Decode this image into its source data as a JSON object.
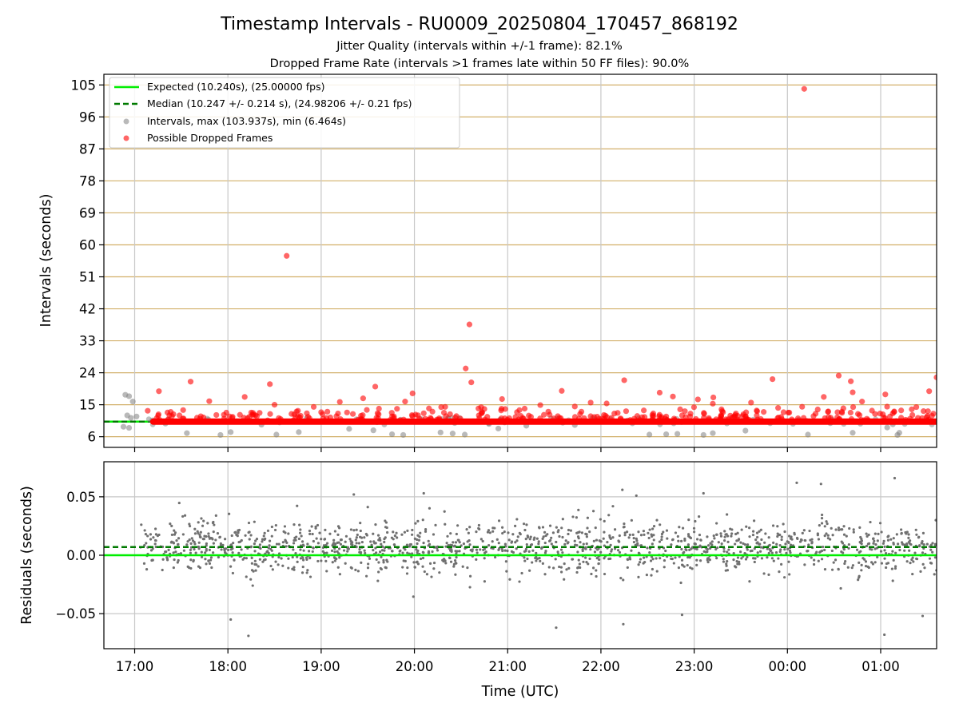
{
  "chart_data": [
    {
      "type": "scatter",
      "title": "Timestamp Intervals - RU0009_20250804_170457_868192",
      "subtitle_lines": [
        "Jitter Quality (intervals within +/-1 frame): 82.1%",
        "Dropped Frame Rate (intervals >1 frames late within 50 FF files): 90.0%"
      ],
      "xlabel": "",
      "ylabel": "Intervals (seconds)",
      "x_unit": "hours since 17:00 UTC on the time axis",
      "xlim": [
        -0.33,
        8.6
      ],
      "ylim": [
        3,
        108
      ],
      "y_ticks": [
        6,
        15,
        24,
        33,
        42,
        51,
        60,
        69,
        78,
        87,
        96,
        105
      ],
      "grid": "x and y",
      "legend_position": "upper-left",
      "legend": [
        "Expected (10.240s), (25.00000 fps)",
        "Median (10.247 +/- 0.214 s), (24.98206 +/- 0.21 fps)",
        "Intervals, max (103.937s), min (6.464s)",
        "Possible Dropped Frames"
      ],
      "expected_value": 10.24,
      "median_value": 10.247,
      "colors": {
        "expected": "#00ee00",
        "median": "#007a00",
        "intervals": "#808080",
        "dropped": "#ff0000",
        "grid_y": "#d2b06a",
        "grid_x": "#c8c8c8"
      },
      "dropped_band": {
        "x_start": 0.2,
        "x_end": 8.6,
        "y": 10.24
      },
      "series": [
        {
          "name": "Possible Dropped Frames",
          "points": [
            [
              1.63,
              56.9
            ],
            [
              3.59,
              37.6
            ],
            [
              7.18,
              103.9
            ],
            [
              3.55,
              25.2
            ],
            [
              3.61,
              21.3
            ],
            [
              0.6,
              21.5
            ],
            [
              2.58,
              20.1
            ],
            [
              1.45,
              20.8
            ],
            [
              2.98,
              18.2
            ],
            [
              5.25,
              21.9
            ],
            [
              6.84,
              22.2
            ],
            [
              7.55,
              23.2
            ],
            [
              7.68,
              21.6
            ],
            [
              8.6,
              22.7
            ],
            [
              8.52,
              18.8
            ],
            [
              7.7,
              18.5
            ],
            [
              4.58,
              18.9
            ],
            [
              5.63,
              18.4
            ],
            [
              8.05,
              17.9
            ],
            [
              2.45,
              16.8
            ],
            [
              0.26,
              18.8
            ],
            [
              1.18,
              17.2
            ],
            [
              2.9,
              15.9
            ],
            [
              3.94,
              16.6
            ],
            [
              4.89,
              15.6
            ],
            [
              6.2,
              15.3
            ],
            [
              6.61,
              15.6
            ],
            [
              7.39,
              17.2
            ],
            [
              0.8,
              16.0
            ],
            [
              1.92,
              14.4
            ],
            [
              2.2,
              15.8
            ],
            [
              3.33,
              14.4
            ],
            [
              4.35,
              14.9
            ],
            [
              5.46,
              13.4
            ],
            [
              6.04,
              16.5
            ],
            [
              6.3,
              13.2
            ],
            [
              7.6,
              14.0
            ],
            [
              8.46,
              13.2
            ],
            [
              0.14,
              13.3
            ],
            [
              0.52,
              13.5
            ],
            [
              1.5,
              15.0
            ],
            [
              2.62,
              13.9
            ],
            [
              3.75,
              13.8
            ],
            [
              4.72,
              14.5
            ],
            [
              5.85,
              13.7
            ],
            [
              6.9,
              14.1
            ],
            [
              7.8,
              15.9
            ],
            [
              8.22,
              13.4
            ],
            [
              1.25,
              12.8
            ],
            [
              2.0,
              12.9
            ],
            [
              2.34,
              12.4
            ],
            [
              3.1,
              12.6
            ],
            [
              4.1,
              12.9
            ],
            [
              4.45,
              12.2
            ],
            [
              5.18,
              12.7
            ],
            [
              5.96,
              12.5
            ],
            [
              6.44,
              12.1
            ],
            [
              7.02,
              12.8
            ],
            [
              7.94,
              12.4
            ],
            [
              8.34,
              12.1
            ],
            [
              0.4,
              11.8
            ],
            [
              1.05,
              11.6
            ],
            [
              1.78,
              11.9
            ],
            [
              2.78,
              11.7
            ],
            [
              3.45,
              11.8
            ],
            [
              4.25,
              11.6
            ],
            [
              5.05,
              11.9
            ],
            [
              5.7,
              11.7
            ],
            [
              6.55,
              11.6
            ],
            [
              7.28,
              11.8
            ],
            [
              8.1,
              11.7
            ],
            [
              8.55,
              11.9
            ]
          ]
        },
        {
          "name": "Intervals, max (103.937s), min (6.464s)",
          "points": [
            [
              -0.1,
              17.8
            ],
            [
              -0.06,
              17.4
            ],
            [
              -0.02,
              15.9
            ],
            [
              -0.08,
              12.0
            ],
            [
              -0.04,
              11.3
            ],
            [
              0.02,
              11.7
            ],
            [
              -0.12,
              8.8
            ],
            [
              -0.06,
              8.5
            ],
            [
              0.56,
              7.0
            ],
            [
              0.92,
              6.5
            ],
            [
              1.52,
              6.6
            ],
            [
              1.76,
              7.3
            ],
            [
              2.3,
              8.2
            ],
            [
              2.76,
              6.7
            ],
            [
              2.88,
              6.5
            ],
            [
              3.28,
              7.2
            ],
            [
              3.41,
              6.9
            ],
            [
              3.54,
              6.6
            ],
            [
              3.9,
              8.3
            ],
            [
              4.2,
              9.1
            ],
            [
              5.52,
              6.6
            ],
            [
              5.7,
              6.7
            ],
            [
              5.82,
              6.8
            ],
            [
              6.1,
              6.5
            ],
            [
              6.2,
              7.0
            ],
            [
              6.55,
              7.7
            ],
            [
              7.22,
              6.6
            ],
            [
              7.7,
              7.1
            ],
            [
              8.18,
              6.5
            ],
            [
              8.2,
              7.1
            ],
            [
              8.07,
              8.6
            ],
            [
              8.13,
              9.5
            ],
            [
              2.56,
              7.8
            ],
            [
              1.03,
              7.3
            ],
            [
              0.19,
              10.6
            ],
            [
              0.33,
              9.7
            ],
            [
              1.36,
              9.4
            ],
            [
              3.8,
              9.6
            ],
            [
              4.72,
              9.3
            ],
            [
              7.46,
              9.8
            ]
          ]
        }
      ]
    },
    {
      "type": "scatter",
      "title": "",
      "xlabel": "Time (UTC)",
      "ylabel": "Residuals (seconds)",
      "x_unit": "hours since 17:00 UTC on the time axis",
      "xlim": [
        -0.33,
        8.6
      ],
      "ylim": [
        -0.08,
        0.08
      ],
      "y_ticks": [
        -0.05,
        0.0,
        0.05
      ],
      "y_tick_labels": [
        "−0.05",
        "0.00",
        "0.05"
      ],
      "x_ticks": [
        0,
        1,
        2,
        3,
        4,
        5,
        6,
        7,
        8
      ],
      "x_tick_labels": [
        "17:00",
        "18:00",
        "19:00",
        "20:00",
        "21:00",
        "22:00",
        "23:00",
        "00:00",
        "01:00"
      ],
      "grid": "x and y",
      "expected_residual": 0.0,
      "median_residual": 0.007,
      "residual_spread_sd": 0.011,
      "residual_outliers": [
        [
          1.22,
          -0.069
        ],
        [
          4.52,
          -0.062
        ],
        [
          8.04,
          -0.068
        ],
        [
          5.24,
          -0.059
        ],
        [
          8.45,
          -0.052
        ],
        [
          5.87,
          -0.051
        ],
        [
          1.03,
          -0.055
        ],
        [
          3.1,
          0.053
        ],
        [
          5.23,
          0.056
        ],
        [
          5.38,
          0.051
        ],
        [
          8.15,
          0.066
        ],
        [
          7.1,
          0.062
        ],
        [
          7.36,
          0.061
        ],
        [
          6.1,
          0.053
        ],
        [
          2.35,
          0.052
        ]
      ],
      "colors": {
        "residuals": "#707070",
        "expected": "#00ee00",
        "median": "#007a00",
        "grid": "#c8c8c8"
      }
    }
  ]
}
